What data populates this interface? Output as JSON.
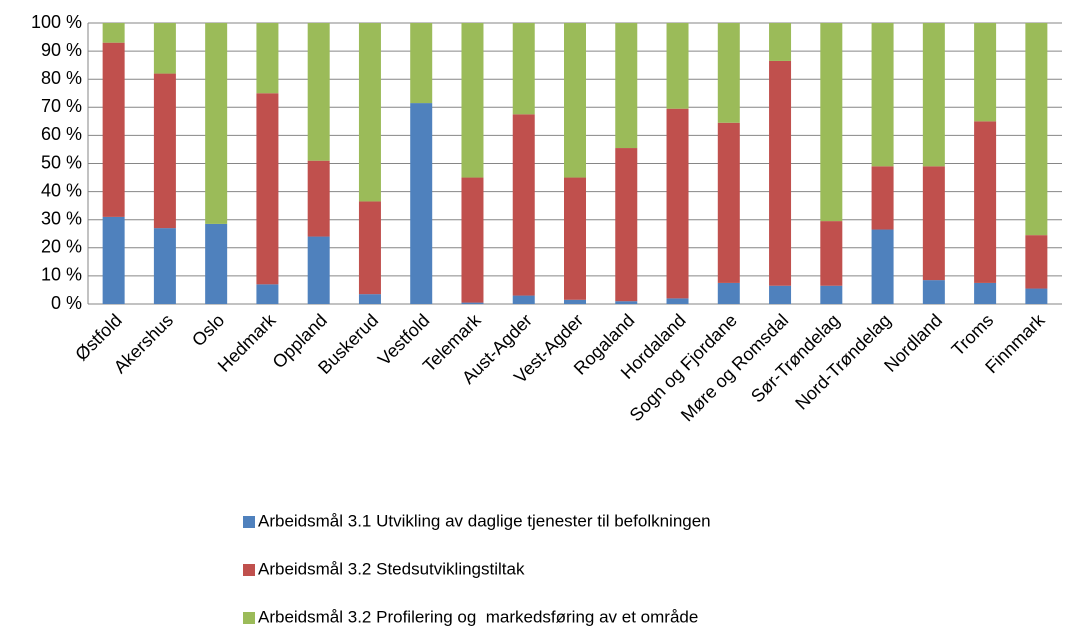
{
  "chart_data": {
    "type": "stacked_bar",
    "categories": [
      "Østfold",
      "Akershus",
      "Oslo",
      "Hedmark",
      "Oppland",
      "Buskerud",
      "Vestfold",
      "Telemark",
      "Aust-Agder",
      "Vest-Agder",
      "Rogaland",
      "Hordaland",
      "Sogn og Fjordane",
      "Møre og Romsdal",
      "Sør-Trøndelag",
      "Nord-Trøndelag",
      "Nordland",
      "Troms",
      "Finnmark"
    ],
    "series": [
      {
        "name": "Arbeidsmål 3.1 Utvikling av daglige tjenester til befolkningen",
        "color": "#4f81bd",
        "values": [
          31,
          27,
          28.5,
          7,
          24,
          3.5,
          71.5,
          0.5,
          3,
          1.5,
          1,
          2,
          7.5,
          6.5,
          6.5,
          26.5,
          8.5,
          7.5,
          5.5
        ]
      },
      {
        "name": "Arbeidsmål 3.2 Stedsutviklingstiltak",
        "color": "#c0504d",
        "values": [
          62,
          55,
          0,
          68,
          27,
          33,
          0,
          44.5,
          64.5,
          43.5,
          54.5,
          67.5,
          57,
          80,
          23,
          22.5,
          40.5,
          57.5,
          19
        ]
      },
      {
        "name": "Arbeidsmål 3.2 Profilering og  markedsføring av et område",
        "color": "#9bbb59",
        "values": [
          7,
          18,
          71.5,
          25,
          49,
          63.5,
          28.5,
          55,
          32.5,
          55,
          44.5,
          30.5,
          35.5,
          13.5,
          70.5,
          51,
          51,
          35,
          75.5
        ]
      }
    ],
    "ylim": [
      0,
      100
    ],
    "yticks": [
      {
        "value": 0,
        "label": "0 %"
      },
      {
        "value": 10,
        "label": "10 %"
      },
      {
        "value": 20,
        "label": "20 %"
      },
      {
        "value": 30,
        "label": "30 %"
      },
      {
        "value": 40,
        "label": "40 %"
      },
      {
        "value": 50,
        "label": "50 %"
      },
      {
        "value": 60,
        "label": "60 %"
      },
      {
        "value": 70,
        "label": "70 %"
      },
      {
        "value": 80,
        "label": "80 %"
      },
      {
        "value": 90,
        "label": "90 %"
      },
      {
        "value": 100,
        "label": "100 %"
      }
    ],
    "grid": true,
    "legend": "bottom"
  }
}
